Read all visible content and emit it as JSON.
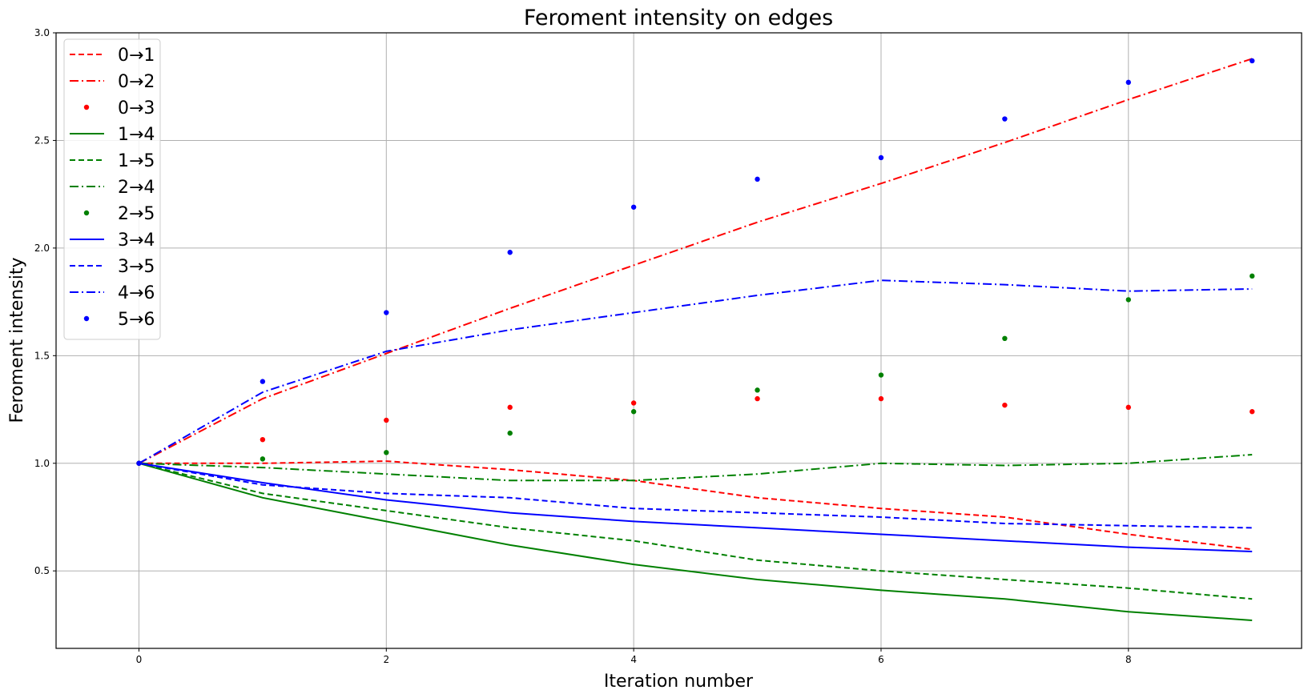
{
  "chart_data": {
    "type": "line",
    "title": "Feroment intensity on edges",
    "xlabel": "Iteration number",
    "ylabel": "Feroment intensity",
    "xlim": [
      -0.67,
      9.4
    ],
    "ylim": [
      0.14,
      3.0
    ],
    "xticks": [
      0,
      2,
      4,
      6,
      8
    ],
    "xtick_labels": [
      "0",
      "2",
      "4",
      "6",
      "8"
    ],
    "yticks": [
      0.5,
      1.0,
      1.5,
      2.0,
      2.5,
      3.0
    ],
    "ytick_labels": [
      "0.5",
      "1.0",
      "1.5",
      "2.0",
      "2.5",
      "3.0"
    ],
    "grid": true,
    "legend_position": "top-left",
    "x": [
      0,
      1,
      2,
      3,
      4,
      5,
      6,
      7,
      8,
      9
    ],
    "series": [
      {
        "name": "0→1",
        "color": "#ff0000",
        "style": "dashed",
        "values": [
          1.0,
          1.0,
          1.01,
          0.97,
          0.92,
          0.84,
          0.79,
          0.75,
          0.67,
          0.6
        ]
      },
      {
        "name": "0→2",
        "color": "#ff0000",
        "style": "dashdot",
        "values": [
          1.0,
          1.3,
          1.51,
          1.72,
          1.92,
          2.12,
          2.3,
          2.49,
          2.69,
          2.88
        ]
      },
      {
        "name": "0→3",
        "color": "#ff0000",
        "style": "dot",
        "values": [
          1.0,
          1.11,
          1.2,
          1.26,
          1.28,
          1.3,
          1.3,
          1.27,
          1.26,
          1.24
        ]
      },
      {
        "name": "1→4",
        "color": "#008000",
        "style": "solid",
        "values": [
          1.0,
          0.84,
          0.73,
          0.62,
          0.53,
          0.46,
          0.41,
          0.37,
          0.31,
          0.27
        ]
      },
      {
        "name": "1→5",
        "color": "#008000",
        "style": "dashed",
        "values": [
          1.0,
          0.86,
          0.78,
          0.7,
          0.64,
          0.55,
          0.5,
          0.46,
          0.42,
          0.37
        ]
      },
      {
        "name": "2→4",
        "color": "#008000",
        "style": "dashdot",
        "values": [
          1.0,
          0.98,
          0.95,
          0.92,
          0.92,
          0.95,
          1.0,
          0.99,
          1.0,
          1.04
        ]
      },
      {
        "name": "2→5",
        "color": "#008000",
        "style": "dot",
        "values": [
          1.0,
          1.02,
          1.05,
          1.14,
          1.24,
          1.34,
          1.41,
          1.58,
          1.76,
          1.87
        ]
      },
      {
        "name": "3→4",
        "color": "#0000ff",
        "style": "solid",
        "values": [
          1.0,
          0.91,
          0.83,
          0.77,
          0.73,
          0.7,
          0.67,
          0.64,
          0.61,
          0.59
        ]
      },
      {
        "name": "3→5",
        "color": "#0000ff",
        "style": "dashed",
        "values": [
          1.0,
          0.9,
          0.86,
          0.84,
          0.79,
          0.77,
          0.75,
          0.72,
          0.71,
          0.7
        ]
      },
      {
        "name": "4→6",
        "color": "#0000ff",
        "style": "dashdot",
        "values": [
          1.0,
          1.33,
          1.52,
          1.62,
          1.7,
          1.78,
          1.85,
          1.83,
          1.8,
          1.81
        ]
      },
      {
        "name": "5→6",
        "color": "#0000ff",
        "style": "dot",
        "values": [
          1.0,
          1.38,
          1.7,
          1.98,
          2.19,
          2.32,
          2.42,
          2.6,
          2.77,
          2.87
        ]
      }
    ]
  }
}
